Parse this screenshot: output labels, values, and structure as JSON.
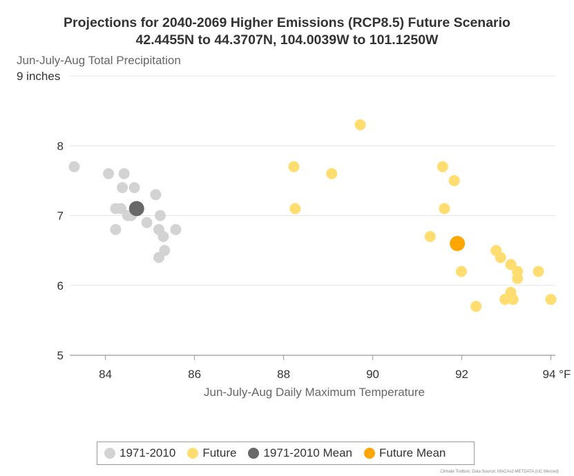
{
  "chart_data": {
    "type": "scatter",
    "title": "Projections for 2040-2069 Higher Emissions (RCP8.5) Future Scenario",
    "subtitle": "42.4455N to 44.3707N, 104.0039W to 101.1250W",
    "ylabel": "Jun-July-Aug Total Precipitation",
    "xlabel": "Jun-July-Aug Daily Maximum Temperature",
    "xlim": [
      83.2,
      94.1
    ],
    "ylim": [
      5,
      9
    ],
    "x_ticks": [
      "84",
      "86",
      "88",
      "90",
      "92",
      "94 °F"
    ],
    "y_ticks": [
      "5",
      "6",
      "7",
      "8",
      "9 inches"
    ],
    "grid": true,
    "legend_position": "bottom",
    "series": [
      {
        "name": "1971-2010",
        "color": "#d3d3d3",
        "points": [
          [
            83.3,
            7.7
          ],
          [
            84.07,
            7.6
          ],
          [
            84.42,
            7.6
          ],
          [
            84.38,
            7.4
          ],
          [
            84.65,
            7.4
          ],
          [
            84.23,
            7.1
          ],
          [
            84.35,
            7.1
          ],
          [
            84.5,
            7.0
          ],
          [
            84.58,
            7.0
          ],
          [
            84.23,
            6.8
          ],
          [
            84.93,
            6.9
          ],
          [
            85.13,
            7.3
          ],
          [
            85.23,
            7.0
          ],
          [
            85.2,
            6.8
          ],
          [
            85.58,
            6.8
          ],
          [
            85.3,
            6.7
          ],
          [
            85.33,
            6.5
          ],
          [
            85.2,
            6.4
          ]
        ]
      },
      {
        "name": "Future",
        "color": "#ffdd71",
        "points": [
          [
            88.23,
            7.7
          ],
          [
            88.26,
            7.1
          ],
          [
            89.08,
            7.6
          ],
          [
            89.72,
            8.3
          ],
          [
            91.57,
            7.7
          ],
          [
            91.83,
            7.5
          ],
          [
            91.61,
            7.1
          ],
          [
            91.29,
            6.7
          ],
          [
            91.99,
            6.2
          ],
          [
            92.77,
            6.5
          ],
          [
            92.87,
            6.4
          ],
          [
            93.1,
            6.3
          ],
          [
            93.25,
            6.2
          ],
          [
            93.25,
            6.1
          ],
          [
            93.72,
            6.2
          ],
          [
            92.32,
            5.7
          ],
          [
            92.97,
            5.8
          ],
          [
            93.1,
            5.9
          ],
          [
            93.15,
            5.8
          ],
          [
            94.0,
            5.8
          ]
        ]
      },
      {
        "name": "1971-2010 Mean",
        "color": "#686868",
        "points": [
          [
            84.7,
            7.1
          ]
        ]
      },
      {
        "name": "Future Mean",
        "color": "#ffa600",
        "points": [
          [
            91.9,
            6.6
          ]
        ]
      }
    ]
  },
  "legend": {
    "items": [
      {
        "label": "1971-2010",
        "color": "#d3d3d3"
      },
      {
        "label": "Future",
        "color": "#ffdd71"
      },
      {
        "label": "1971-2010 Mean",
        "color": "#686868"
      },
      {
        "label": "Future Mean",
        "color": "#ffa600"
      }
    ]
  },
  "credit": "Climate Toolbox; Data Source: MACAv2-METDATA (UC Merced)"
}
